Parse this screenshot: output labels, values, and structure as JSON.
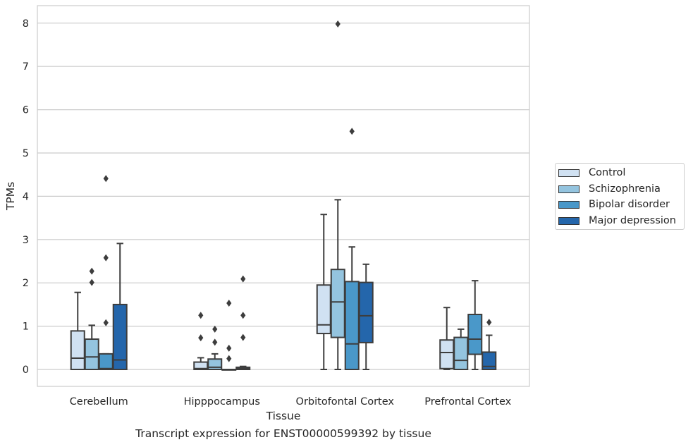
{
  "chart_data": {
    "type": "box",
    "caption": "Transcript expression for ENST00000599392 by tissue",
    "xlabel": "Tissue",
    "ylabel": "TPMs",
    "categories": [
      "Cerebellum",
      "Hipppocampus",
      "Orbitofontal Cortex",
      "Prefrontal Cortex"
    ],
    "ylim": [
      -0.4,
      8.4
    ],
    "yticks": [
      0,
      1,
      2,
      3,
      4,
      5,
      6,
      7,
      8
    ],
    "grid": "horizontal",
    "legend_position": "right",
    "series": [
      {
        "name": "Control",
        "color": "#d0e1f2",
        "boxes": [
          {
            "low": 0,
            "q1": 0,
            "median": 0.26,
            "q3": 0.89,
            "high": 1.78,
            "outliers": []
          },
          {
            "low": 0,
            "q1": 0,
            "median": 0.02,
            "q3": 0.17,
            "high": 0.27,
            "outliers": [
              0.73,
              1.25
            ]
          },
          {
            "low": 0,
            "q1": 0.83,
            "median": 1.03,
            "q3": 1.95,
            "high": 3.58,
            "outliers": []
          },
          {
            "low": 0,
            "q1": 0.02,
            "median": 0.39,
            "q3": 0.68,
            "high": 1.43,
            "outliers": []
          }
        ]
      },
      {
        "name": "Schizophrenia",
        "color": "#94c4df",
        "boxes": [
          {
            "low": 0,
            "q1": 0,
            "median": 0.29,
            "q3": 0.7,
            "high": 1.02,
            "outliers": [
              2.01,
              2.27
            ]
          },
          {
            "low": 0,
            "q1": 0,
            "median": 0.05,
            "q3": 0.24,
            "high": 0.36,
            "outliers": [
              0.63,
              0.93
            ]
          },
          {
            "low": 0,
            "q1": 0.74,
            "median": 1.56,
            "q3": 2.31,
            "high": 3.92,
            "outliers": [
              7.98
            ]
          },
          {
            "low": 0,
            "q1": 0,
            "median": 0.21,
            "q3": 0.74,
            "high": 0.93,
            "outliers": []
          }
        ]
      },
      {
        "name": "Bipolar disorder",
        "color": "#4a98c9",
        "boxes": [
          {
            "low": 0,
            "q1": 0,
            "median": 0.02,
            "q3": 0.36,
            "high": 0.36,
            "outliers": [
              1.08,
              2.58,
              4.41
            ]
          },
          {
            "low": 0,
            "q1": 0,
            "median": 0,
            "q3": 0,
            "high": 0,
            "outliers": [
              0.25,
              0.49,
              1.53
            ]
          },
          {
            "low": 0,
            "q1": 0,
            "median": 0.59,
            "q3": 2.03,
            "high": 2.83,
            "outliers": [
              5.5
            ]
          },
          {
            "low": 0,
            "q1": 0.35,
            "median": 0.7,
            "q3": 1.27,
            "high": 2.05,
            "outliers": []
          }
        ]
      },
      {
        "name": "Major depression",
        "color": "#2466ab",
        "boxes": [
          {
            "low": 0,
            "q1": 0,
            "median": 0.22,
            "q3": 1.5,
            "high": 2.91,
            "outliers": []
          },
          {
            "low": 0,
            "q1": 0,
            "median": 0.02,
            "q3": 0.05,
            "high": 0.07,
            "outliers": [
              0.74,
              1.25,
              2.09
            ]
          },
          {
            "low": 0,
            "q1": 0.62,
            "median": 1.24,
            "q3": 2.01,
            "high": 2.43,
            "outliers": []
          },
          {
            "low": 0,
            "q1": 0,
            "median": 0.07,
            "q3": 0.4,
            "high": 0.79,
            "outliers": [
              1.09
            ]
          }
        ]
      }
    ]
  }
}
